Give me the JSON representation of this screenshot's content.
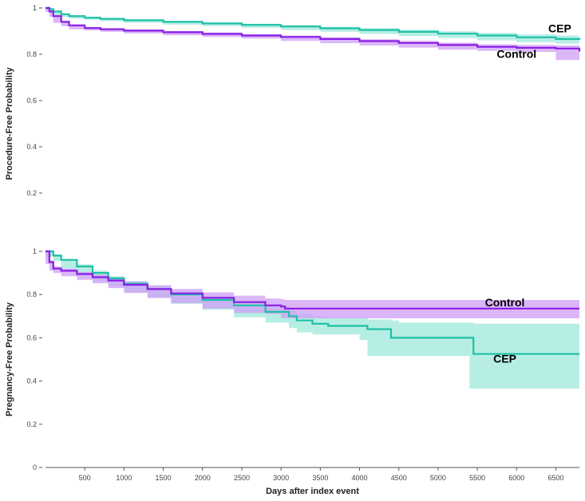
{
  "colors": {
    "cep": "#1ec0a6",
    "control": "#8a1ee6",
    "cep_band": "#9ee8db",
    "control_band": "#cf9df5",
    "axis": "#555555"
  },
  "chart_data": [
    {
      "type": "line",
      "panel": "procedure",
      "ylabel": "Procedure-Free Probability",
      "xlabel": "",
      "xlim": [
        0,
        6800
      ],
      "ylim": [
        0,
        1
      ],
      "yticks": [
        0.2,
        0.4,
        0.6,
        0.8,
        1
      ],
      "ytick_labels": [
        "0.2",
        "0.4",
        "0.6",
        "0.8",
        "1"
      ],
      "grid": false,
      "series": [
        {
          "name": "CEP",
          "color_key": "cep",
          "x": [
            0,
            50,
            100,
            200,
            300,
            500,
            700,
            1000,
            1500,
            2000,
            2500,
            3000,
            3500,
            4000,
            4500,
            5000,
            5500,
            6000,
            6500,
            6800
          ],
          "y": [
            1.0,
            0.995,
            0.985,
            0.973,
            0.965,
            0.958,
            0.953,
            0.947,
            0.94,
            0.933,
            0.927,
            0.92,
            0.912,
            0.905,
            0.897,
            0.889,
            0.881,
            0.873,
            0.866,
            0.862
          ],
          "ci_upper": [
            1.0,
            0.997,
            0.988,
            0.977,
            0.969,
            0.962,
            0.957,
            0.951,
            0.944,
            0.938,
            0.932,
            0.926,
            0.919,
            0.913,
            0.906,
            0.899,
            0.892,
            0.886,
            0.881,
            0.878
          ],
          "ci_lower": [
            1.0,
            0.993,
            0.982,
            0.969,
            0.961,
            0.954,
            0.949,
            0.943,
            0.936,
            0.928,
            0.922,
            0.914,
            0.905,
            0.897,
            0.888,
            0.879,
            0.87,
            0.86,
            0.852,
            0.846
          ]
        },
        {
          "name": "Control",
          "color_key": "control",
          "x": [
            0,
            50,
            100,
            200,
            300,
            500,
            700,
            1000,
            1500,
            2000,
            2500,
            3000,
            3500,
            4000,
            4500,
            5000,
            5500,
            6000,
            6500,
            6800
          ],
          "y": [
            1.0,
            0.985,
            0.965,
            0.94,
            0.925,
            0.913,
            0.908,
            0.902,
            0.895,
            0.888,
            0.881,
            0.875,
            0.866,
            0.857,
            0.849,
            0.84,
            0.832,
            0.828,
            0.825,
            0.812
          ],
          "ci_upper": [
            1.0,
            0.987,
            0.968,
            0.944,
            0.929,
            0.918,
            0.913,
            0.907,
            0.9,
            0.894,
            0.887,
            0.881,
            0.873,
            0.865,
            0.858,
            0.85,
            0.843,
            0.84,
            0.838,
            0.83
          ],
          "ci_lower": [
            1.0,
            0.983,
            0.962,
            0.936,
            0.921,
            0.908,
            0.903,
            0.897,
            0.89,
            0.882,
            0.875,
            0.868,
            0.858,
            0.848,
            0.838,
            0.829,
            0.82,
            0.815,
            0.81,
            0.775
          ]
        }
      ],
      "annotations": [
        {
          "text": "CEP",
          "color_key": "cep",
          "x": 6550,
          "y": 0.895
        },
        {
          "text": "Control",
          "color_key": "control",
          "x": 6000,
          "y": 0.785
        }
      ]
    },
    {
      "type": "line",
      "panel": "pregnancy",
      "ylabel": "Pregnancy-Free Probability",
      "xlabel": "Days after index event",
      "xlim": [
        0,
        6800
      ],
      "ylim": [
        0,
        1
      ],
      "xticks": [
        500,
        1000,
        1500,
        2000,
        2500,
        3000,
        3500,
        4000,
        4500,
        5000,
        5500,
        6000,
        6500
      ],
      "xtick_labels": [
        "500",
        "1000",
        "1500",
        "2000",
        "2500",
        "3000",
        "3500",
        "4000",
        "4500",
        "5000",
        "5500",
        "6000",
        "6500"
      ],
      "yticks": [
        0,
        0.2,
        0.4,
        0.6,
        0.8,
        1
      ],
      "ytick_labels": [
        "0",
        "0.2",
        "0.4",
        "0.6",
        "0.8",
        "1"
      ],
      "grid": false,
      "series": [
        {
          "name": "CEP",
          "color_key": "cep",
          "x": [
            0,
            100,
            200,
            400,
            600,
            800,
            1000,
            1300,
            1600,
            2000,
            2400,
            2800,
            3100,
            3200,
            3400,
            3600,
            4000,
            4100,
            4400,
            4500,
            5400,
            5450,
            6800
          ],
          "y": [
            1.0,
            0.98,
            0.96,
            0.93,
            0.9,
            0.875,
            0.85,
            0.825,
            0.8,
            0.775,
            0.75,
            0.72,
            0.7,
            0.68,
            0.665,
            0.655,
            0.655,
            0.64,
            0.6,
            0.6,
            0.6,
            0.525,
            0.525
          ],
          "ci_upper": [
            1.0,
            0.985,
            0.965,
            0.94,
            0.91,
            0.885,
            0.862,
            0.838,
            0.815,
            0.792,
            0.768,
            0.742,
            0.725,
            0.71,
            0.7,
            0.695,
            0.695,
            0.685,
            0.68,
            0.67,
            0.67,
            0.665,
            0.665
          ],
          "ci_lower": [
            1.0,
            0.975,
            0.955,
            0.92,
            0.89,
            0.863,
            0.838,
            0.81,
            0.785,
            0.757,
            0.73,
            0.695,
            0.67,
            0.645,
            0.625,
            0.615,
            0.615,
            0.59,
            0.515,
            0.515,
            0.515,
            0.365,
            0.365
          ]
        },
        {
          "name": "Control",
          "color_key": "control",
          "x": [
            0,
            50,
            100,
            200,
            400,
            600,
            800,
            1000,
            1300,
            1600,
            2000,
            2400,
            2800,
            3000,
            3050,
            6800
          ],
          "y": [
            1.0,
            0.95,
            0.92,
            0.91,
            0.895,
            0.88,
            0.865,
            0.845,
            0.825,
            0.805,
            0.785,
            0.765,
            0.75,
            0.745,
            0.735,
            0.735
          ],
          "ci_upper": [
            1.0,
            0.958,
            0.93,
            0.92,
            0.905,
            0.892,
            0.878,
            0.86,
            0.843,
            0.826,
            0.81,
            0.795,
            0.782,
            0.778,
            0.775,
            0.775
          ],
          "ci_lower": [
            1.0,
            0.942,
            0.91,
            0.9,
            0.885,
            0.868,
            0.852,
            0.83,
            0.807,
            0.784,
            0.76,
            0.735,
            0.715,
            0.71,
            0.69,
            0.69
          ]
        }
      ],
      "annotations": [
        {
          "text": "Control",
          "color_key": "control",
          "x": 5850,
          "y": 0.745
        },
        {
          "text": "CEP",
          "color_key": "cep",
          "x": 5850,
          "y": 0.485
        }
      ]
    }
  ]
}
